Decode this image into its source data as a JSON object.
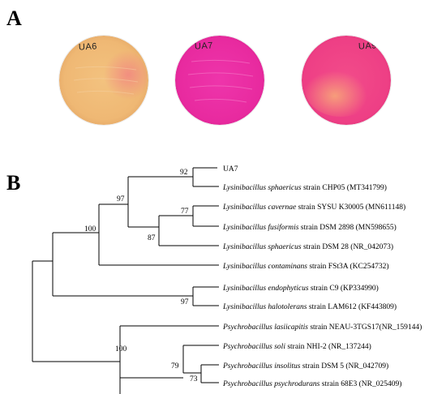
{
  "panel_a": {
    "label": "A",
    "plates": [
      {
        "label": "UA6",
        "base": "#f2c079",
        "inner": "#f0b070",
        "streak": "#f07880"
      },
      {
        "label": "UA7",
        "base": "#e8269c",
        "inner": "#ee34aa",
        "streak": "#f15bbb"
      },
      {
        "label": "UA9",
        "base": "#f04a8e",
        "inner": "#f2497e",
        "streak": "#f6a57c"
      }
    ]
  },
  "panel_b": {
    "label": "B",
    "leaves": [
      {
        "id": "ua7",
        "genus": "",
        "rest": "UA7"
      },
      {
        "id": "l-sph-chp05",
        "genus": "Lysinibacillus sphaericus",
        "rest": " strain CHP05 (MT341799)"
      },
      {
        "id": "l-cav",
        "genus": "Lysinibacillus cavernae",
        "rest": " strain SYSU K30005 (MN611148)"
      },
      {
        "id": "l-fus",
        "genus": "Lysinibacillus fusiformis",
        "rest": " strain DSM 2898 (MN598655)"
      },
      {
        "id": "l-sph-dsm28",
        "genus": "Lysinibacillus sphaericus",
        "rest": " strain DSM 28 (NR_042073)"
      },
      {
        "id": "l-con",
        "genus": "Lysinibacillus contaminans",
        "rest": " strain FSt3A (KC254732)"
      },
      {
        "id": "l-end",
        "genus": "Lysinibacillus endophyticus",
        "rest": " strain C9 (KP334990)"
      },
      {
        "id": "l-hal",
        "genus": "Lysinibacillus halotolerans",
        "rest": " strain LAM612 (KF443809)"
      },
      {
        "id": "p-las",
        "genus": "Psychrobacillus lasiicapitis",
        "rest": " strain NEAU-3TGS17(NR_159144)"
      },
      {
        "id": "p-sol",
        "genus": "Psychrobacillus soli",
        "rest": " strain NHI-2 (NR_137244)"
      },
      {
        "id": "p-ins",
        "genus": "Psychrobacillus insolitus",
        "rest": " strain DSM 5 (NR_042709)"
      },
      {
        "id": "p-psy",
        "genus": "Psychrobacillus psychrodurans",
        "rest": " strain 68E3 (NR_025409)"
      }
    ],
    "bootstraps": [
      "92",
      "97",
      "77",
      "87",
      "100",
      "97",
      "100",
      "79",
      "73"
    ]
  }
}
